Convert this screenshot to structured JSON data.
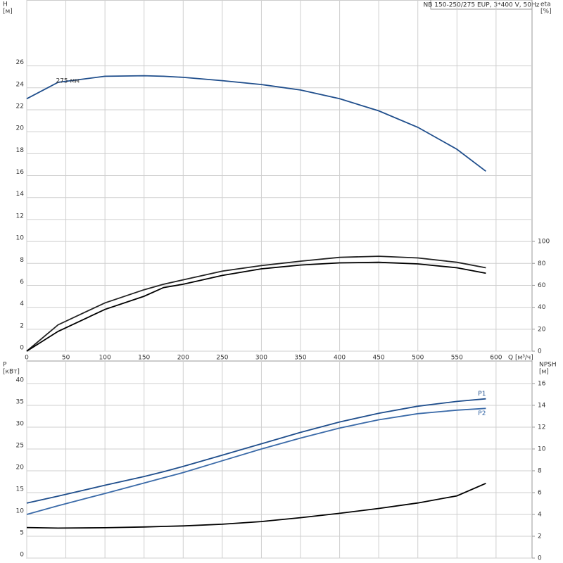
{
  "chart_data": [
    {
      "type": "line",
      "title": "NB 150-250/275 EUP, 3*400 V, 50Hz",
      "ylabel": [
        "H",
        "[м]"
      ],
      "y2label": [
        "eta",
        "[%]"
      ],
      "xlabel": "Q [м³/ч]",
      "xlim": [
        0,
        646
      ],
      "xticks": [
        0,
        50,
        100,
        150,
        200,
        250,
        300,
        350,
        400,
        450,
        500,
        550,
        600
      ],
      "ylim": [
        0,
        32
      ],
      "yticks": [
        0,
        2,
        4,
        6,
        8,
        10,
        12,
        14,
        16,
        18,
        20,
        22,
        24,
        26
      ],
      "y2lim": [
        0,
        320
      ],
      "y2ticks": [
        0,
        20,
        40,
        60,
        80,
        100
      ],
      "grid": true,
      "x": [
        0,
        40,
        100,
        150,
        175,
        200,
        250,
        300,
        350,
        400,
        450,
        500,
        550,
        587
      ],
      "series": [
        {
          "name": "275 мм",
          "color": "#1f4e8c",
          "values": [
            23,
            24.5,
            25.05,
            25.1,
            25.05,
            24.95,
            24.65,
            24.3,
            23.8,
            23.0,
            21.9,
            20.4,
            18.4,
            16.4
          ]
        },
        {
          "color": "#222222",
          "axis": "y2",
          "values": [
            0,
            24,
            44,
            56,
            61,
            65,
            73,
            78,
            82,
            85.5,
            86.5,
            85,
            81,
            76
          ]
        },
        {
          "color": "#000000",
          "axis": "y2",
          "values": [
            0,
            18,
            38,
            50,
            58,
            61,
            69,
            75,
            78.5,
            80.5,
            81,
            79.5,
            76,
            71
          ]
        }
      ]
    },
    {
      "type": "line",
      "ylabel": [
        "P",
        "[кВт]"
      ],
      "y2label": [
        "NPSH",
        "[м]"
      ],
      "xlim": [
        0,
        646
      ],
      "ylim": [
        0,
        45.16
      ],
      "yticks": [
        0,
        5,
        10,
        15,
        20,
        25,
        30,
        35,
        40
      ],
      "y2lim": [
        0,
        18.06
      ],
      "y2ticks": [
        0,
        2,
        4,
        6,
        8,
        10,
        12,
        14,
        16
      ],
      "grid": true,
      "x": [
        0,
        40,
        100,
        150,
        175,
        200,
        250,
        300,
        350,
        400,
        450,
        500,
        550,
        587
      ],
      "series": [
        {
          "name": "P1",
          "color": "#1f4e8c",
          "values": [
            12.6,
            14.2,
            16.7,
            18.7,
            19.8,
            21,
            23.6,
            26.2,
            28.8,
            31.2,
            33.2,
            34.8,
            35.9,
            36.5
          ]
        },
        {
          "name": "P2",
          "color": "#3a6aa8",
          "values": [
            10,
            12,
            14.8,
            17.2,
            18.4,
            19.6,
            22.3,
            25,
            27.5,
            29.8,
            31.7,
            33.1,
            33.9,
            34.3
          ]
        },
        {
          "color": "#000000",
          "axis": "y2",
          "values": [
            2.8,
            2.75,
            2.78,
            2.85,
            2.9,
            2.95,
            3.1,
            3.35,
            3.7,
            4.1,
            4.55,
            5.05,
            5.7,
            6.85
          ]
        }
      ]
    }
  ]
}
